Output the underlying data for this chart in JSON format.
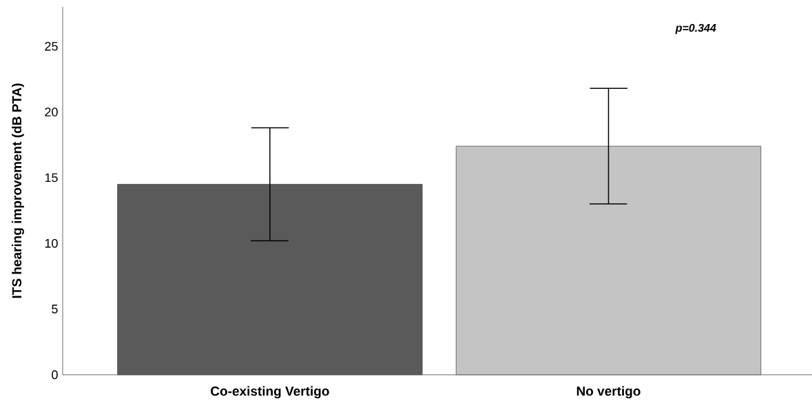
{
  "chart_data": {
    "type": "bar",
    "ylabel": "ITS hearing improvement (dB PTA)",
    "categories": [
      "Co-existing Vertigo",
      "No vertigo"
    ],
    "values": [
      14.5,
      17.4
    ],
    "errors": [
      4.3,
      4.4
    ],
    "colors": [
      "#5a5a5a",
      "#c4c4c4"
    ],
    "ylim": [
      0,
      28
    ],
    "yticks": [
      0,
      5,
      10,
      15,
      20,
      25
    ],
    "annotations": [
      "p=0.344"
    ]
  }
}
